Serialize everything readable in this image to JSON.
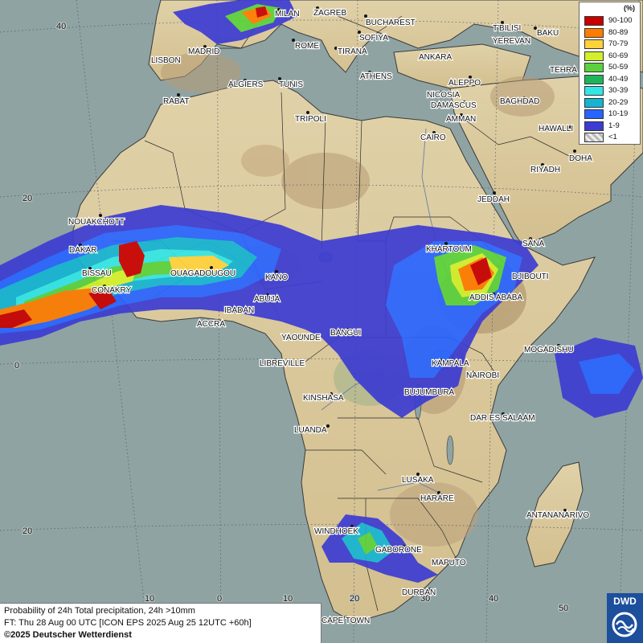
{
  "map": {
    "colors": {
      "sea": "#8fa3a3",
      "land": "#dccda4",
      "highland": "#b79a72",
      "lowland": "#9fb38a",
      "border": "#2a2a2a",
      "gridline": "#5a6070"
    },
    "lat_labels": [
      "40",
      "20",
      "0",
      "20"
    ],
    "lon_labels": [
      "10",
      "0",
      "10",
      "20",
      "30",
      "40",
      "50"
    ],
    "cities": [
      {
        "name": "MILAN"
      },
      {
        "name": "ZAGREB"
      },
      {
        "name": "BUCHAREST"
      },
      {
        "name": "T'BILISI"
      },
      {
        "name": "BAKU"
      },
      {
        "name": "MADRID"
      },
      {
        "name": "ROME"
      },
      {
        "name": "SOFIYA"
      },
      {
        "name": "YEREVAN"
      },
      {
        "name": "LISBON"
      },
      {
        "name": "TIRANA"
      },
      {
        "name": "ANKARA"
      },
      {
        "name": "TEHRA"
      },
      {
        "name": "ATHENS"
      },
      {
        "name": "ALGIERS"
      },
      {
        "name": "TUNIS"
      },
      {
        "name": "ALEPPO"
      },
      {
        "name": "RABAT"
      },
      {
        "name": "NICOSIA"
      },
      {
        "name": "BAGHDAD"
      },
      {
        "name": "DAMASCUS"
      },
      {
        "name": "TRIPOLI"
      },
      {
        "name": "AMMAN"
      },
      {
        "name": "HAWALLI"
      },
      {
        "name": "CAIRO"
      },
      {
        "name": "DOHA"
      },
      {
        "name": "RIYADH"
      },
      {
        "name": "JEDDAH"
      },
      {
        "name": "NOUAKCHOTT"
      },
      {
        "name": "SANA"
      },
      {
        "name": "DAKAR"
      },
      {
        "name": "KHARTOUM"
      },
      {
        "name": "BISSAU"
      },
      {
        "name": "OUAGADOUGOU"
      },
      {
        "name": "KANO"
      },
      {
        "name": "DJIBOUTI"
      },
      {
        "name": "CONAKRY"
      },
      {
        "name": "ABUJA"
      },
      {
        "name": "ADDIS ABABA"
      },
      {
        "name": "IBADAN"
      },
      {
        "name": "ACCRA"
      },
      {
        "name": "BANGUI"
      },
      {
        "name": "YAOUNDE"
      },
      {
        "name": "MOGADISHU"
      },
      {
        "name": "LIBREVILLE"
      },
      {
        "name": "KAMPALA"
      },
      {
        "name": "NAIROBI"
      },
      {
        "name": "KINSHASA"
      },
      {
        "name": "BUJUMBURA"
      },
      {
        "name": "DAR ES SALAAM"
      },
      {
        "name": "LUANDA"
      },
      {
        "name": "LUSAKA"
      },
      {
        "name": "HARARE"
      },
      {
        "name": "ANTANANARIVO"
      },
      {
        "name": "WINDHOEK"
      },
      {
        "name": "GABORONE"
      },
      {
        "name": "MAPUTO"
      },
      {
        "name": "DURBAN"
      },
      {
        "name": "CAPE TOWN"
      }
    ]
  },
  "legend": {
    "title": "(%)",
    "items": [
      {
        "label": "90-100",
        "color": "#c80000"
      },
      {
        "label": "80-89",
        "color": "#ff7c00"
      },
      {
        "label": "70-79",
        "color": "#ffd23c"
      },
      {
        "label": "60-69",
        "color": "#d2f02a"
      },
      {
        "label": "50-59",
        "color": "#5ad23c"
      },
      {
        "label": "40-49",
        "color": "#1eb45a"
      },
      {
        "label": "30-39",
        "color": "#32e6e6"
      },
      {
        "label": "20-29",
        "color": "#14b4d2"
      },
      {
        "label": "10-19",
        "color": "#2864ff"
      },
      {
        "label": "1-9",
        "color": "#3c3cd2"
      },
      {
        "label": "<1",
        "color": "#d8d8d8"
      }
    ]
  },
  "caption": {
    "line1": "Probability of 24h Total precipitation, 24h >10mm",
    "line2": "FT: Thu 28 Aug 00 UTC [ICON EPS 2025 Aug 25 12UTC +60h]",
    "line3": "©2025 Deutscher Wetterdienst"
  },
  "logo": {
    "text": "DWD",
    "color": "#1c4f9c"
  }
}
